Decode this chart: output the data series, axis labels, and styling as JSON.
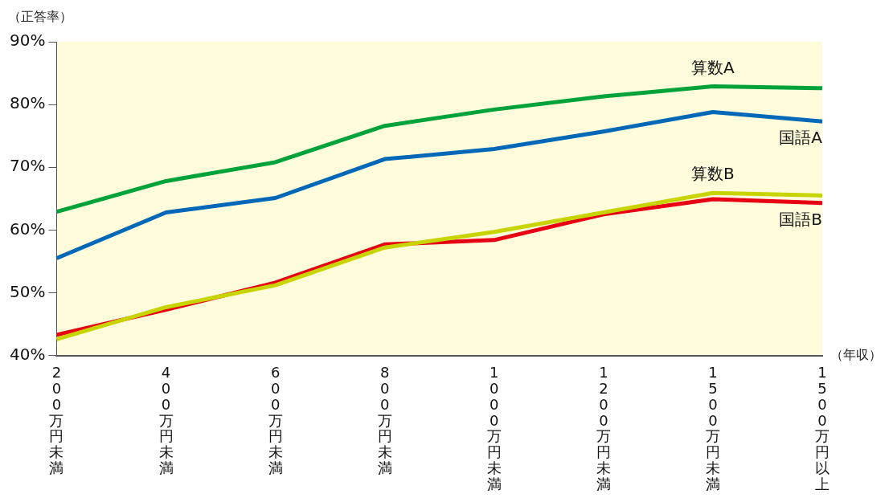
{
  "chart_data": {
    "type": "line",
    "xlabel": "（年収）",
    "ylabel": "（正答率）",
    "categories": [
      "200万円未満",
      "400万円未満",
      "600万円未満",
      "800万円未満",
      "1000万円未満",
      "1200万円未満",
      "1500万円未満",
      "1500万円以上"
    ],
    "series": [
      {
        "name": "算数A",
        "color": "#00a23a",
        "values": [
          62.9,
          67.8,
          70.8,
          76.6,
          79.2,
          81.3,
          82.9,
          82.6
        ]
      },
      {
        "name": "国語A",
        "color": "#0068b7",
        "values": [
          55.5,
          62.8,
          65.1,
          71.3,
          72.9,
          75.7,
          78.8,
          77.3
        ]
      },
      {
        "name": "算数B",
        "color": "#c8d400",
        "values": [
          42.6,
          47.7,
          51.2,
          57.2,
          59.7,
          62.8,
          65.9,
          65.5
        ]
      },
      {
        "name": "国語B",
        "color": "#e60012",
        "values": [
          43.3,
          47.3,
          51.6,
          57.7,
          58.4,
          62.5,
          64.9,
          64.3
        ]
      }
    ],
    "ylim": [
      40,
      90
    ],
    "yticks": [
      {
        "value": 40,
        "label": "40%"
      },
      {
        "value": 50,
        "label": "50%"
      },
      {
        "value": 60,
        "label": "60%"
      },
      {
        "value": 70,
        "label": "70%"
      },
      {
        "value": 80,
        "label": "80%"
      },
      {
        "value": 90,
        "label": "90%"
      }
    ],
    "grid": false,
    "legend": false,
    "marker": "none",
    "line_style": "solid"
  }
}
